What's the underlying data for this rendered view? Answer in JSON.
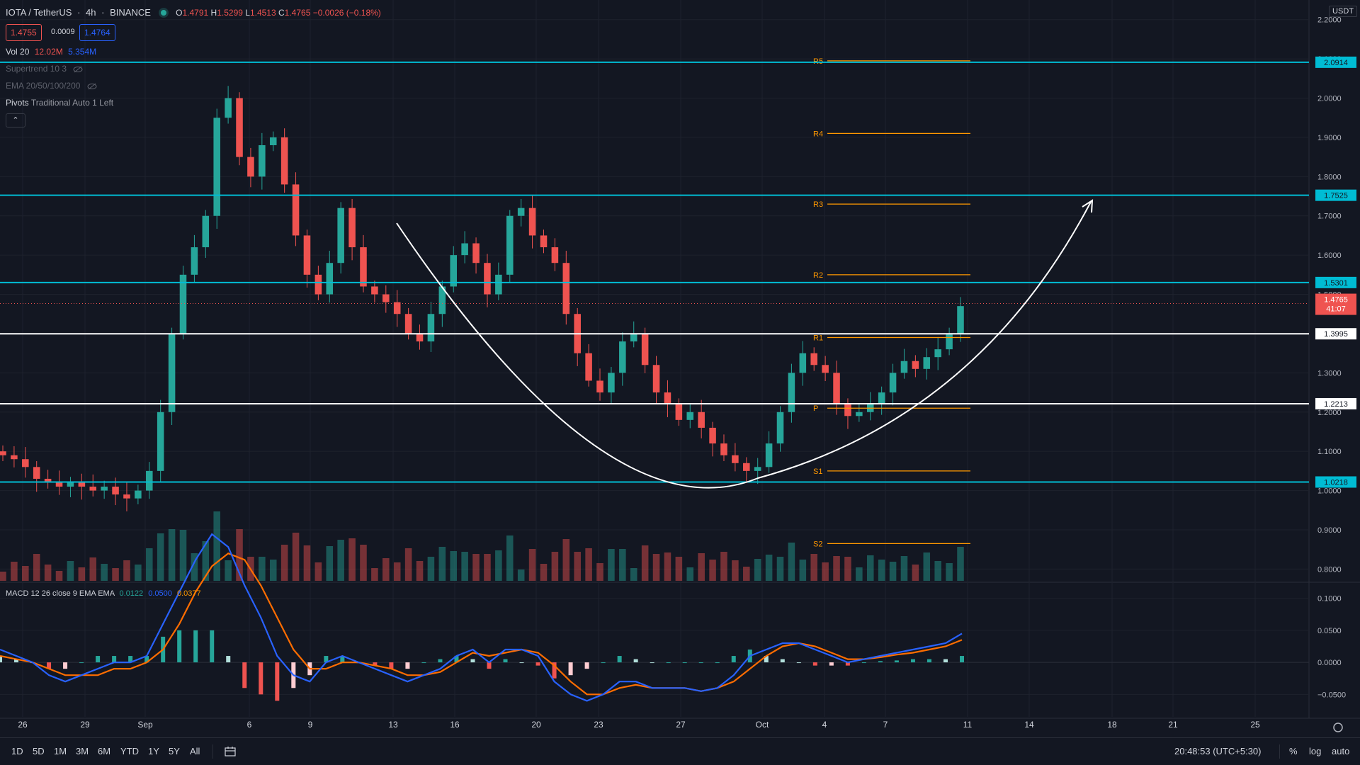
{
  "header": {
    "symbol": "IOTA / TetherUS",
    "interval": "4h",
    "exchange": "BINANCE",
    "open_label": "O",
    "open": "1.4791",
    "high_label": "H",
    "high": "1.5299",
    "low_label": "L",
    "low": "1.4513",
    "close_label": "C",
    "close": "1.4765",
    "change": "−0.0026 (−0.18%)"
  },
  "price_boxes": {
    "bid": "1.4755",
    "spread": "0.0009",
    "ask": "1.4764"
  },
  "indicators": {
    "vol_name": "Vol 20",
    "vol_1": "12.02M",
    "vol_2": "5.354M",
    "supertrend": "Supertrend 10 3",
    "ema": "EMA 20/50/100/200",
    "pivots_name": "Pivots",
    "pivots_params": "Traditional Auto 1 Left"
  },
  "macd_legend": {
    "name": "MACD 12 26 close 9 EMA EMA",
    "v1": "0.0122",
    "v2": "0.0500",
    "v3": "0.0377"
  },
  "currency_tag": "USDT",
  "colors": {
    "bg": "#131722",
    "up": "#26a69a",
    "down": "#ef5350",
    "cyan": "#00bcd4",
    "orange": "#ff9800",
    "macd": "#2962ff",
    "signal": "#ff6d00",
    "grid": "#1e222d"
  },
  "chart_data": [
    {
      "type": "candlestick",
      "title": "IOTA / TetherUS 4h BINANCE",
      "ylim": [
        0.77,
        2.25
      ],
      "y_ticks": [
        "2.2000",
        "2.1000",
        "2.0000",
        "1.9000",
        "1.8000",
        "1.7000",
        "1.6000",
        "1.5000",
        "1.4000",
        "1.3000",
        "1.2000",
        "1.1000",
        "1.0000",
        "0.9000",
        "0.8000"
      ],
      "x_ticks": [
        "26",
        "29",
        "Sep",
        "6",
        "9",
        "13",
        "16",
        "20",
        "23",
        "27",
        "Oct",
        "4",
        "7",
        "11",
        "14",
        "18",
        "21",
        "25"
      ],
      "horizontal_levels": [
        {
          "value": 2.0914,
          "label": "2.0914",
          "color": "cyan"
        },
        {
          "value": 1.7525,
          "label": "1.7525",
          "color": "cyan"
        },
        {
          "value": 1.5301,
          "label": "1.5301",
          "color": "cyan"
        },
        {
          "value": 1.3995,
          "label": "1.3995",
          "color": "white"
        },
        {
          "value": 1.2213,
          "label": "1.2213",
          "color": "white"
        },
        {
          "value": 1.0218,
          "label": "1.0218",
          "color": "cyan"
        }
      ],
      "current_price": {
        "value": 1.4765,
        "label": "1.4765",
        "countdown": "41:07"
      },
      "pivots": [
        {
          "name": "R5",
          "value": 2.095
        },
        {
          "name": "R4",
          "value": 1.91
        },
        {
          "name": "R3",
          "value": 1.73
        },
        {
          "name": "R2",
          "value": 1.55
        },
        {
          "name": "R1",
          "value": 1.39
        },
        {
          "name": "P",
          "value": 1.21
        },
        {
          "name": "S1",
          "value": 1.05
        },
        {
          "name": "S2",
          "value": 0.865
        }
      ],
      "close_series_approx": [
        1.09,
        1.08,
        1.06,
        1.03,
        1.02,
        1.01,
        1.02,
        1.01,
        1.0,
        1.01,
        0.99,
        0.98,
        1.0,
        1.05,
        1.2,
        1.4,
        1.55,
        1.62,
        1.7,
        1.95,
        2.0,
        1.85,
        1.8,
        1.88,
        1.9,
        1.78,
        1.65,
        1.55,
        1.5,
        1.58,
        1.72,
        1.62,
        1.52,
        1.5,
        1.48,
        1.45,
        1.4,
        1.38,
        1.45,
        1.52,
        1.6,
        1.63,
        1.58,
        1.5,
        1.55,
        1.7,
        1.72,
        1.65,
        1.62,
        1.58,
        1.45,
        1.35,
        1.28,
        1.25,
        1.3,
        1.38,
        1.4,
        1.32,
        1.25,
        1.22,
        1.18,
        1.2,
        1.16,
        1.12,
        1.09,
        1.07,
        1.05,
        1.06,
        1.12,
        1.2,
        1.3,
        1.35,
        1.32,
        1.3,
        1.22,
        1.19,
        1.2,
        1.22,
        1.25,
        1.3,
        1.33,
        1.31,
        1.34,
        1.36,
        1.4,
        1.47
      ]
    },
    {
      "type": "macd",
      "title": "MACD 12 26 close 9 EMA EMA",
      "ylim": [
        -0.085,
        0.125
      ],
      "y_ticks": [
        "0.1000",
        "0.0500",
        "0.0000",
        "−0.0500"
      ],
      "macd_approx": [
        0.02,
        0.01,
        0.0,
        -0.02,
        -0.03,
        -0.02,
        -0.01,
        0.0,
        0.0,
        0.01,
        0.06,
        0.11,
        0.16,
        0.2,
        0.18,
        0.12,
        0.07,
        0.01,
        -0.02,
        -0.03,
        0.0,
        0.01,
        0.0,
        -0.01,
        -0.02,
        -0.03,
        -0.02,
        -0.01,
        0.01,
        0.02,
        0.0,
        0.02,
        0.02,
        0.01,
        -0.03,
        -0.05,
        -0.06,
        -0.05,
        -0.03,
        -0.03,
        -0.04,
        -0.04,
        -0.04,
        -0.045,
        -0.04,
        -0.02,
        0.01,
        0.02,
        0.03,
        0.03,
        0.02,
        0.01,
        0.0,
        0.005,
        0.01,
        0.015,
        0.02,
        0.025,
        0.03,
        0.045
      ],
      "signal_approx": [
        0.01,
        0.005,
        0.0,
        -0.01,
        -0.02,
        -0.02,
        -0.02,
        -0.01,
        -0.01,
        0.0,
        0.02,
        0.06,
        0.11,
        0.15,
        0.17,
        0.16,
        0.12,
        0.07,
        0.02,
        -0.01,
        -0.01,
        0.0,
        0.0,
        -0.005,
        -0.01,
        -0.02,
        -0.02,
        -0.015,
        0.0,
        0.015,
        0.01,
        0.015,
        0.02,
        0.015,
        -0.005,
        -0.03,
        -0.05,
        -0.05,
        -0.04,
        -0.035,
        -0.04,
        -0.04,
        -0.04,
        -0.045,
        -0.04,
        -0.03,
        -0.01,
        0.01,
        0.025,
        0.03,
        0.025,
        0.015,
        0.005,
        0.005,
        0.008,
        0.012,
        0.015,
        0.02,
        0.025,
        0.035
      ]
    }
  ],
  "bottom_bar": {
    "timeframes": [
      "1D",
      "5D",
      "1M",
      "3M",
      "6M",
      "YTD",
      "1Y",
      "5Y",
      "All"
    ],
    "clock": "20:48:53 (UTC+5:30)",
    "pct": "%",
    "log": "log",
    "auto": "auto"
  }
}
